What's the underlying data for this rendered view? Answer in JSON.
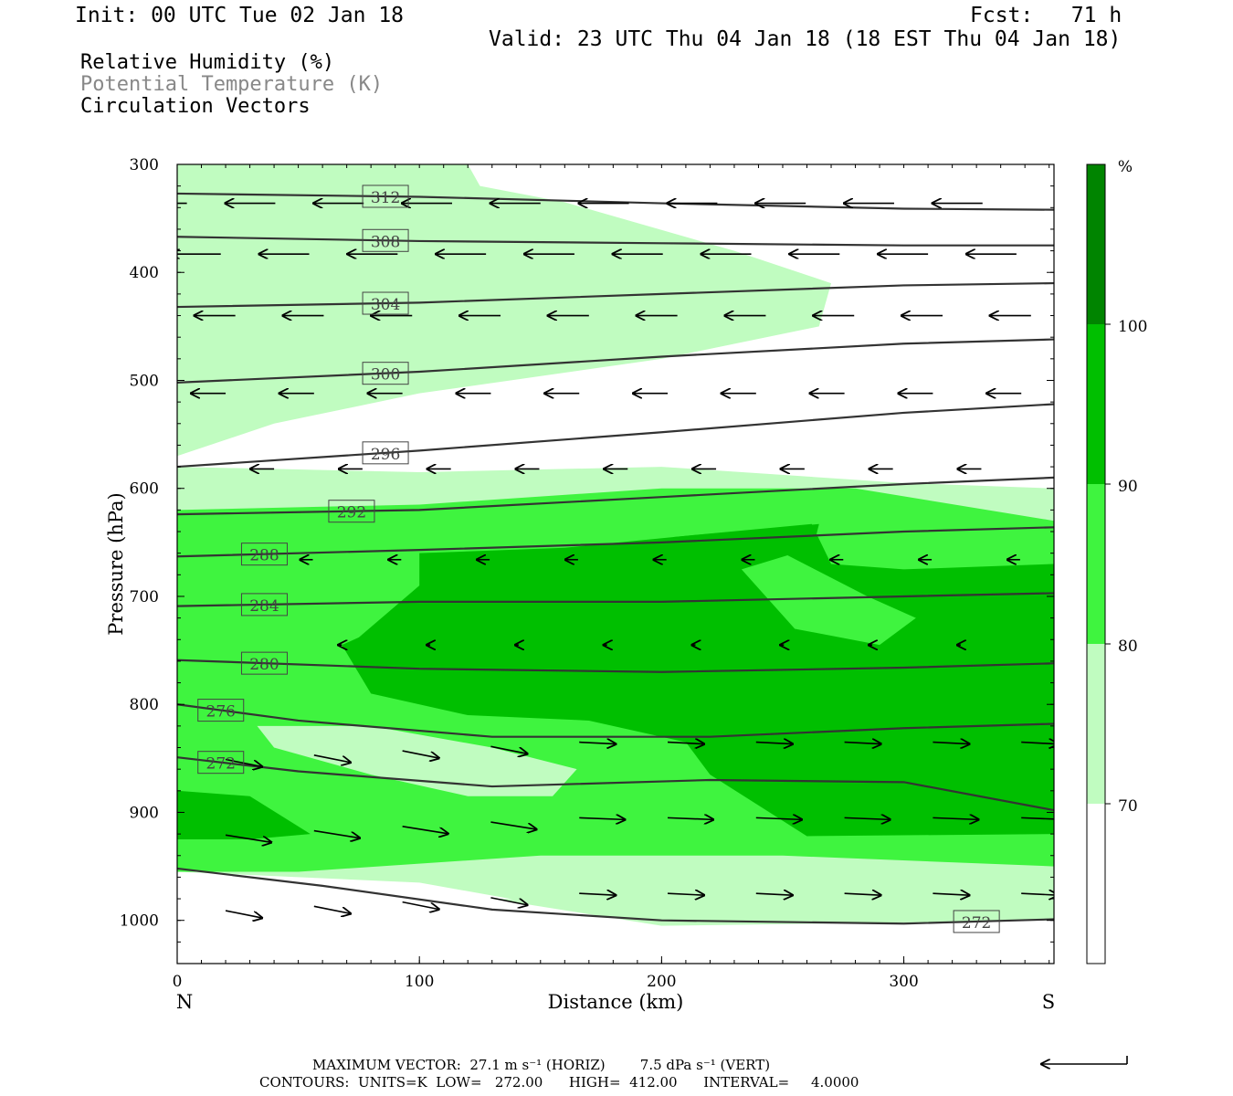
{
  "header": {
    "init": "Init: 00 UTC Tue 02 Jan 18",
    "fcst": "Fcst:   71 h",
    "valid": "Valid: 23 UTC Thu 04 Jan 18 (18 EST Thu 04 Jan 18)"
  },
  "legend": {
    "rh": "Relative Humidity (%)",
    "theta": "Potential Temperature (K)",
    "vectors": "Circulation Vectors"
  },
  "footer": {
    "max_vector": "MAXIMUM VECTOR:  27.1 m s⁻¹ (HORIZ)        7.5 dPa s⁻¹ (VERT)",
    "contours": "CONTOURS:  UNITS=K  LOW=   272.00      HIGH=  412.00      INTERVAL=     4.0000"
  },
  "colors": {
    "rh70": "#c0fcc0",
    "rh80": "#3ff43f",
    "rh90": "#00bf00",
    "rh100": "#008400",
    "contour": "#333333"
  },
  "chart_data": {
    "type": "cross-section",
    "xlabel": "Distance (km)",
    "ylabel": "Pressure (hPa)",
    "xlim": [
      0,
      362
    ],
    "ylim": [
      1040,
      300
    ],
    "x_ticks": [
      "0",
      "100",
      "200",
      "300"
    ],
    "y_ticks": [
      "300",
      "400",
      "500",
      "600",
      "700",
      "800",
      "900",
      "1000"
    ],
    "x_end_labels": {
      "left": "N",
      "right": "S"
    },
    "colorbar": {
      "unit": "%",
      "levels": [
        "100",
        "90",
        "80",
        "70"
      ]
    },
    "theta_contours": [
      {
        "label": "312",
        "points": [
          [
            0,
            327
          ],
          [
            100,
            330
          ],
          [
            200,
            336
          ],
          [
            300,
            341
          ],
          [
            362,
            342
          ]
        ]
      },
      {
        "label": "308",
        "points": [
          [
            0,
            367
          ],
          [
            100,
            371
          ],
          [
            200,
            373
          ],
          [
            300,
            375
          ],
          [
            362,
            375
          ]
        ]
      },
      {
        "label": "304",
        "points": [
          [
            0,
            432
          ],
          [
            100,
            428
          ],
          [
            200,
            420
          ],
          [
            300,
            412
          ],
          [
            362,
            410
          ]
        ]
      },
      {
        "label": "300",
        "points": [
          [
            0,
            502
          ],
          [
            100,
            492
          ],
          [
            200,
            478
          ],
          [
            300,
            466
          ],
          [
            362,
            462
          ]
        ]
      },
      {
        "label": "296",
        "points": [
          [
            0,
            580
          ],
          [
            100,
            565
          ],
          [
            200,
            548
          ],
          [
            300,
            530
          ],
          [
            362,
            522
          ]
        ]
      },
      {
        "label": "292",
        "points": [
          [
            0,
            624
          ],
          [
            100,
            620
          ],
          [
            200,
            608
          ],
          [
            300,
            596
          ],
          [
            362,
            590
          ]
        ]
      },
      {
        "label": "288",
        "points": [
          [
            0,
            663
          ],
          [
            100,
            657
          ],
          [
            200,
            650
          ],
          [
            300,
            640
          ],
          [
            362,
            636
          ]
        ]
      },
      {
        "label": "284",
        "points": [
          [
            0,
            709
          ],
          [
            100,
            705
          ],
          [
            200,
            705
          ],
          [
            300,
            700
          ],
          [
            362,
            697
          ]
        ]
      },
      {
        "label": "280",
        "points": [
          [
            0,
            759
          ],
          [
            100,
            767
          ],
          [
            200,
            770
          ],
          [
            300,
            766
          ],
          [
            362,
            762
          ]
        ]
      },
      {
        "label": "276",
        "points": [
          [
            0,
            800
          ],
          [
            50,
            815
          ],
          [
            130,
            830
          ],
          [
            220,
            830
          ],
          [
            300,
            822
          ],
          [
            362,
            818
          ]
        ]
      },
      {
        "label": "272",
        "points": [
          [
            0,
            849
          ],
          [
            50,
            862
          ],
          [
            130,
            876
          ],
          [
            220,
            870
          ],
          [
            300,
            872
          ],
          [
            362,
            898
          ]
        ]
      },
      {
        "label": "272",
        "points": [
          [
            0,
            952
          ],
          [
            60,
            968
          ],
          [
            130,
            990
          ],
          [
            200,
            1000
          ],
          [
            300,
            1003
          ],
          [
            362,
            999
          ]
        ]
      }
    ],
    "rh_regions": [
      {
        "level": "70-80",
        "points": [
          [
            20,
            300
          ],
          [
            120,
            300
          ],
          [
            125,
            320
          ],
          [
            160,
            335
          ],
          [
            230,
            380
          ],
          [
            270,
            410
          ],
          [
            265,
            450
          ],
          [
            200,
            480
          ],
          [
            100,
            512
          ],
          [
            40,
            540
          ],
          [
            0,
            570
          ],
          [
            0,
            300
          ]
        ]
      },
      {
        "level": "70-80",
        "points": [
          [
            0,
            580
          ],
          [
            100,
            585
          ],
          [
            200,
            580
          ],
          [
            300,
            595
          ],
          [
            362,
            600
          ],
          [
            362,
            975
          ],
          [
            300,
            990
          ],
          [
            200,
            990
          ],
          [
            150,
            985
          ],
          [
            100,
            965
          ],
          [
            0,
            955
          ]
        ]
      },
      {
        "level": "80-90",
        "points": [
          [
            0,
            620
          ],
          [
            100,
            615
          ],
          [
            200,
            600
          ],
          [
            280,
            600
          ],
          [
            362,
            630
          ],
          [
            362,
            950
          ],
          [
            250,
            940
          ],
          [
            150,
            940
          ],
          [
            50,
            955
          ],
          [
            0,
            955
          ]
        ]
      },
      {
        "level": "90-100",
        "points": [
          [
            0,
            880
          ],
          [
            30,
            885
          ],
          [
            55,
            920
          ],
          [
            30,
            925
          ],
          [
            0,
            925
          ]
        ]
      },
      {
        "level": "90-100",
        "points": [
          [
            100,
            660
          ],
          [
            160,
            655
          ],
          [
            205,
            645
          ],
          [
            262,
            633
          ],
          [
            270,
            670
          ],
          [
            300,
            675
          ],
          [
            362,
            670
          ],
          [
            362,
            920
          ],
          [
            260,
            922
          ],
          [
            220,
            865
          ],
          [
            210,
            835
          ],
          [
            170,
            815
          ],
          [
            120,
            810
          ],
          [
            80,
            790
          ],
          [
            68,
            745
          ],
          [
            75,
            738
          ],
          [
            100,
            690
          ]
        ]
      },
      {
        "level": "90-100",
        "points": [
          [
            205,
            645
          ],
          [
            265,
            633
          ],
          [
            262,
            660
          ],
          [
            240,
            665
          ],
          [
            230,
            670
          ]
        ]
      },
      {
        "level": "80-90",
        "points": [
          [
            233,
            675
          ],
          [
            252,
            662
          ],
          [
            285,
            700
          ],
          [
            305,
            720
          ],
          [
            290,
            745
          ],
          [
            255,
            730
          ]
        ]
      },
      {
        "level": "70-80",
        "points": [
          [
            33,
            820
          ],
          [
            80,
            820
          ],
          [
            130,
            840
          ],
          [
            165,
            860
          ],
          [
            155,
            885
          ],
          [
            120,
            885
          ],
          [
            80,
            865
          ],
          [
            40,
            840
          ]
        ]
      },
      {
        "level": "70-80",
        "points": [
          [
            130,
            980
          ],
          [
            200,
            983
          ],
          [
            260,
            982
          ],
          [
            362,
            975
          ],
          [
            362,
            1000
          ],
          [
            200,
            1005
          ]
        ]
      }
    ],
    "vectors": [
      {
        "x": 0,
        "p": 336,
        "u": -28,
        "w": 0
      }
    ]
  }
}
